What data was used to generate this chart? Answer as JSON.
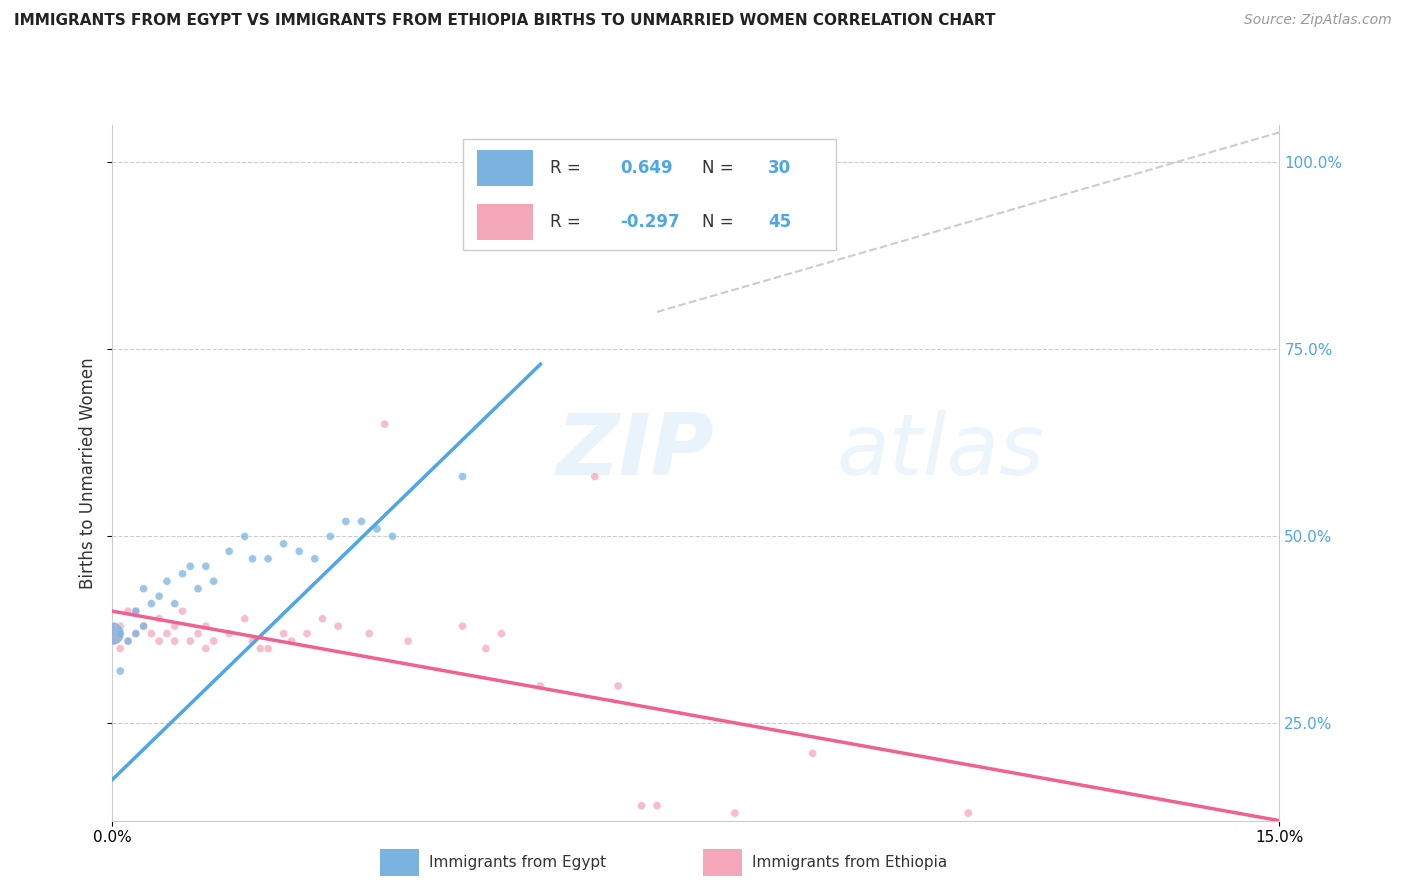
{
  "title": "IMMIGRANTS FROM EGYPT VS IMMIGRANTS FROM ETHIOPIA BIRTHS TO UNMARRIED WOMEN CORRELATION CHART",
  "source": "Source: ZipAtlas.com",
  "ylabel": "Births to Unmarried Women",
  "xlabel_egypt": "Immigrants from Egypt",
  "xlabel_ethiopia": "Immigrants from Ethiopia",
  "xlim": [
    0.0,
    0.15
  ],
  "ylim": [
    0.12,
    1.05
  ],
  "xticks": [
    0.0,
    0.15
  ],
  "xtick_labels": [
    "0.0%",
    "15.0%"
  ],
  "ytick_labels": [
    "25.0%",
    "50.0%",
    "75.0%",
    "100.0%"
  ],
  "yticks": [
    0.25,
    0.5,
    0.75,
    1.0
  ],
  "egypt_color": "#7ab3e0",
  "ethiopia_color": "#f4a7b9",
  "egypt_R": 0.649,
  "egypt_N": 30,
  "ethiopia_R": -0.297,
  "ethiopia_N": 45,
  "egypt_line_color": "#4da6e8",
  "ethiopia_line_color": "#f06090",
  "watermark_text": "ZIPatlas",
  "egypt_points": [
    [
      0.001,
      0.37
    ],
    [
      0.001,
      0.32
    ],
    [
      0.002,
      0.36
    ],
    [
      0.003,
      0.37
    ],
    [
      0.003,
      0.4
    ],
    [
      0.004,
      0.38
    ],
    [
      0.004,
      0.43
    ],
    [
      0.005,
      0.41
    ],
    [
      0.006,
      0.42
    ],
    [
      0.007,
      0.44
    ],
    [
      0.008,
      0.41
    ],
    [
      0.009,
      0.45
    ],
    [
      0.01,
      0.46
    ],
    [
      0.011,
      0.43
    ],
    [
      0.012,
      0.46
    ],
    [
      0.013,
      0.44
    ],
    [
      0.015,
      0.48
    ],
    [
      0.017,
      0.5
    ],
    [
      0.018,
      0.47
    ],
    [
      0.02,
      0.47
    ],
    [
      0.022,
      0.49
    ],
    [
      0.024,
      0.48
    ],
    [
      0.026,
      0.47
    ],
    [
      0.028,
      0.5
    ],
    [
      0.03,
      0.52
    ],
    [
      0.032,
      0.52
    ],
    [
      0.034,
      0.51
    ],
    [
      0.036,
      0.5
    ],
    [
      0.045,
      0.58
    ],
    [
      0.0,
      0.37
    ]
  ],
  "egypt_sizes": [
    35,
    35,
    35,
    35,
    35,
    35,
    35,
    35,
    35,
    35,
    35,
    35,
    35,
    35,
    35,
    35,
    35,
    35,
    35,
    35,
    35,
    35,
    35,
    35,
    35,
    35,
    35,
    35,
    35,
    280
  ],
  "ethiopia_points": [
    [
      0.0,
      0.37
    ],
    [
      0.0,
      0.36
    ],
    [
      0.001,
      0.35
    ],
    [
      0.001,
      0.38
    ],
    [
      0.002,
      0.36
    ],
    [
      0.002,
      0.4
    ],
    [
      0.003,
      0.37
    ],
    [
      0.003,
      0.4
    ],
    [
      0.004,
      0.38
    ],
    [
      0.005,
      0.37
    ],
    [
      0.006,
      0.36
    ],
    [
      0.006,
      0.39
    ],
    [
      0.007,
      0.37
    ],
    [
      0.008,
      0.38
    ],
    [
      0.008,
      0.36
    ],
    [
      0.009,
      0.4
    ],
    [
      0.01,
      0.36
    ],
    [
      0.011,
      0.37
    ],
    [
      0.012,
      0.38
    ],
    [
      0.012,
      0.35
    ],
    [
      0.013,
      0.36
    ],
    [
      0.015,
      0.37
    ],
    [
      0.017,
      0.39
    ],
    [
      0.018,
      0.36
    ],
    [
      0.019,
      0.35
    ],
    [
      0.02,
      0.35
    ],
    [
      0.022,
      0.37
    ],
    [
      0.023,
      0.36
    ],
    [
      0.025,
      0.37
    ],
    [
      0.027,
      0.39
    ],
    [
      0.029,
      0.38
    ],
    [
      0.033,
      0.37
    ],
    [
      0.035,
      0.65
    ],
    [
      0.038,
      0.36
    ],
    [
      0.045,
      0.38
    ],
    [
      0.048,
      0.35
    ],
    [
      0.05,
      0.37
    ],
    [
      0.055,
      0.3
    ],
    [
      0.062,
      0.58
    ],
    [
      0.065,
      0.3
    ],
    [
      0.068,
      0.14
    ],
    [
      0.07,
      0.14
    ],
    [
      0.08,
      0.13
    ],
    [
      0.09,
      0.21
    ],
    [
      0.11,
      0.13
    ]
  ],
  "ethiopia_sizes": [
    280,
    35,
    35,
    35,
    35,
    35,
    35,
    35,
    35,
    35,
    35,
    35,
    35,
    35,
    35,
    35,
    35,
    35,
    35,
    35,
    35,
    35,
    35,
    35,
    35,
    35,
    35,
    35,
    35,
    35,
    35,
    35,
    35,
    35,
    35,
    35,
    35,
    35,
    35,
    35,
    35,
    35,
    35,
    35,
    35
  ],
  "egypt_line_x": [
    0.0,
    0.055
  ],
  "egypt_line_y": [
    0.175,
    0.73
  ],
  "ethiopia_line_x": [
    0.0,
    0.15
  ],
  "ethiopia_line_y": [
    0.4,
    0.12
  ],
  "diag_line_x": [
    0.07,
    0.15
  ],
  "diag_line_y": [
    0.8,
    1.04
  ]
}
